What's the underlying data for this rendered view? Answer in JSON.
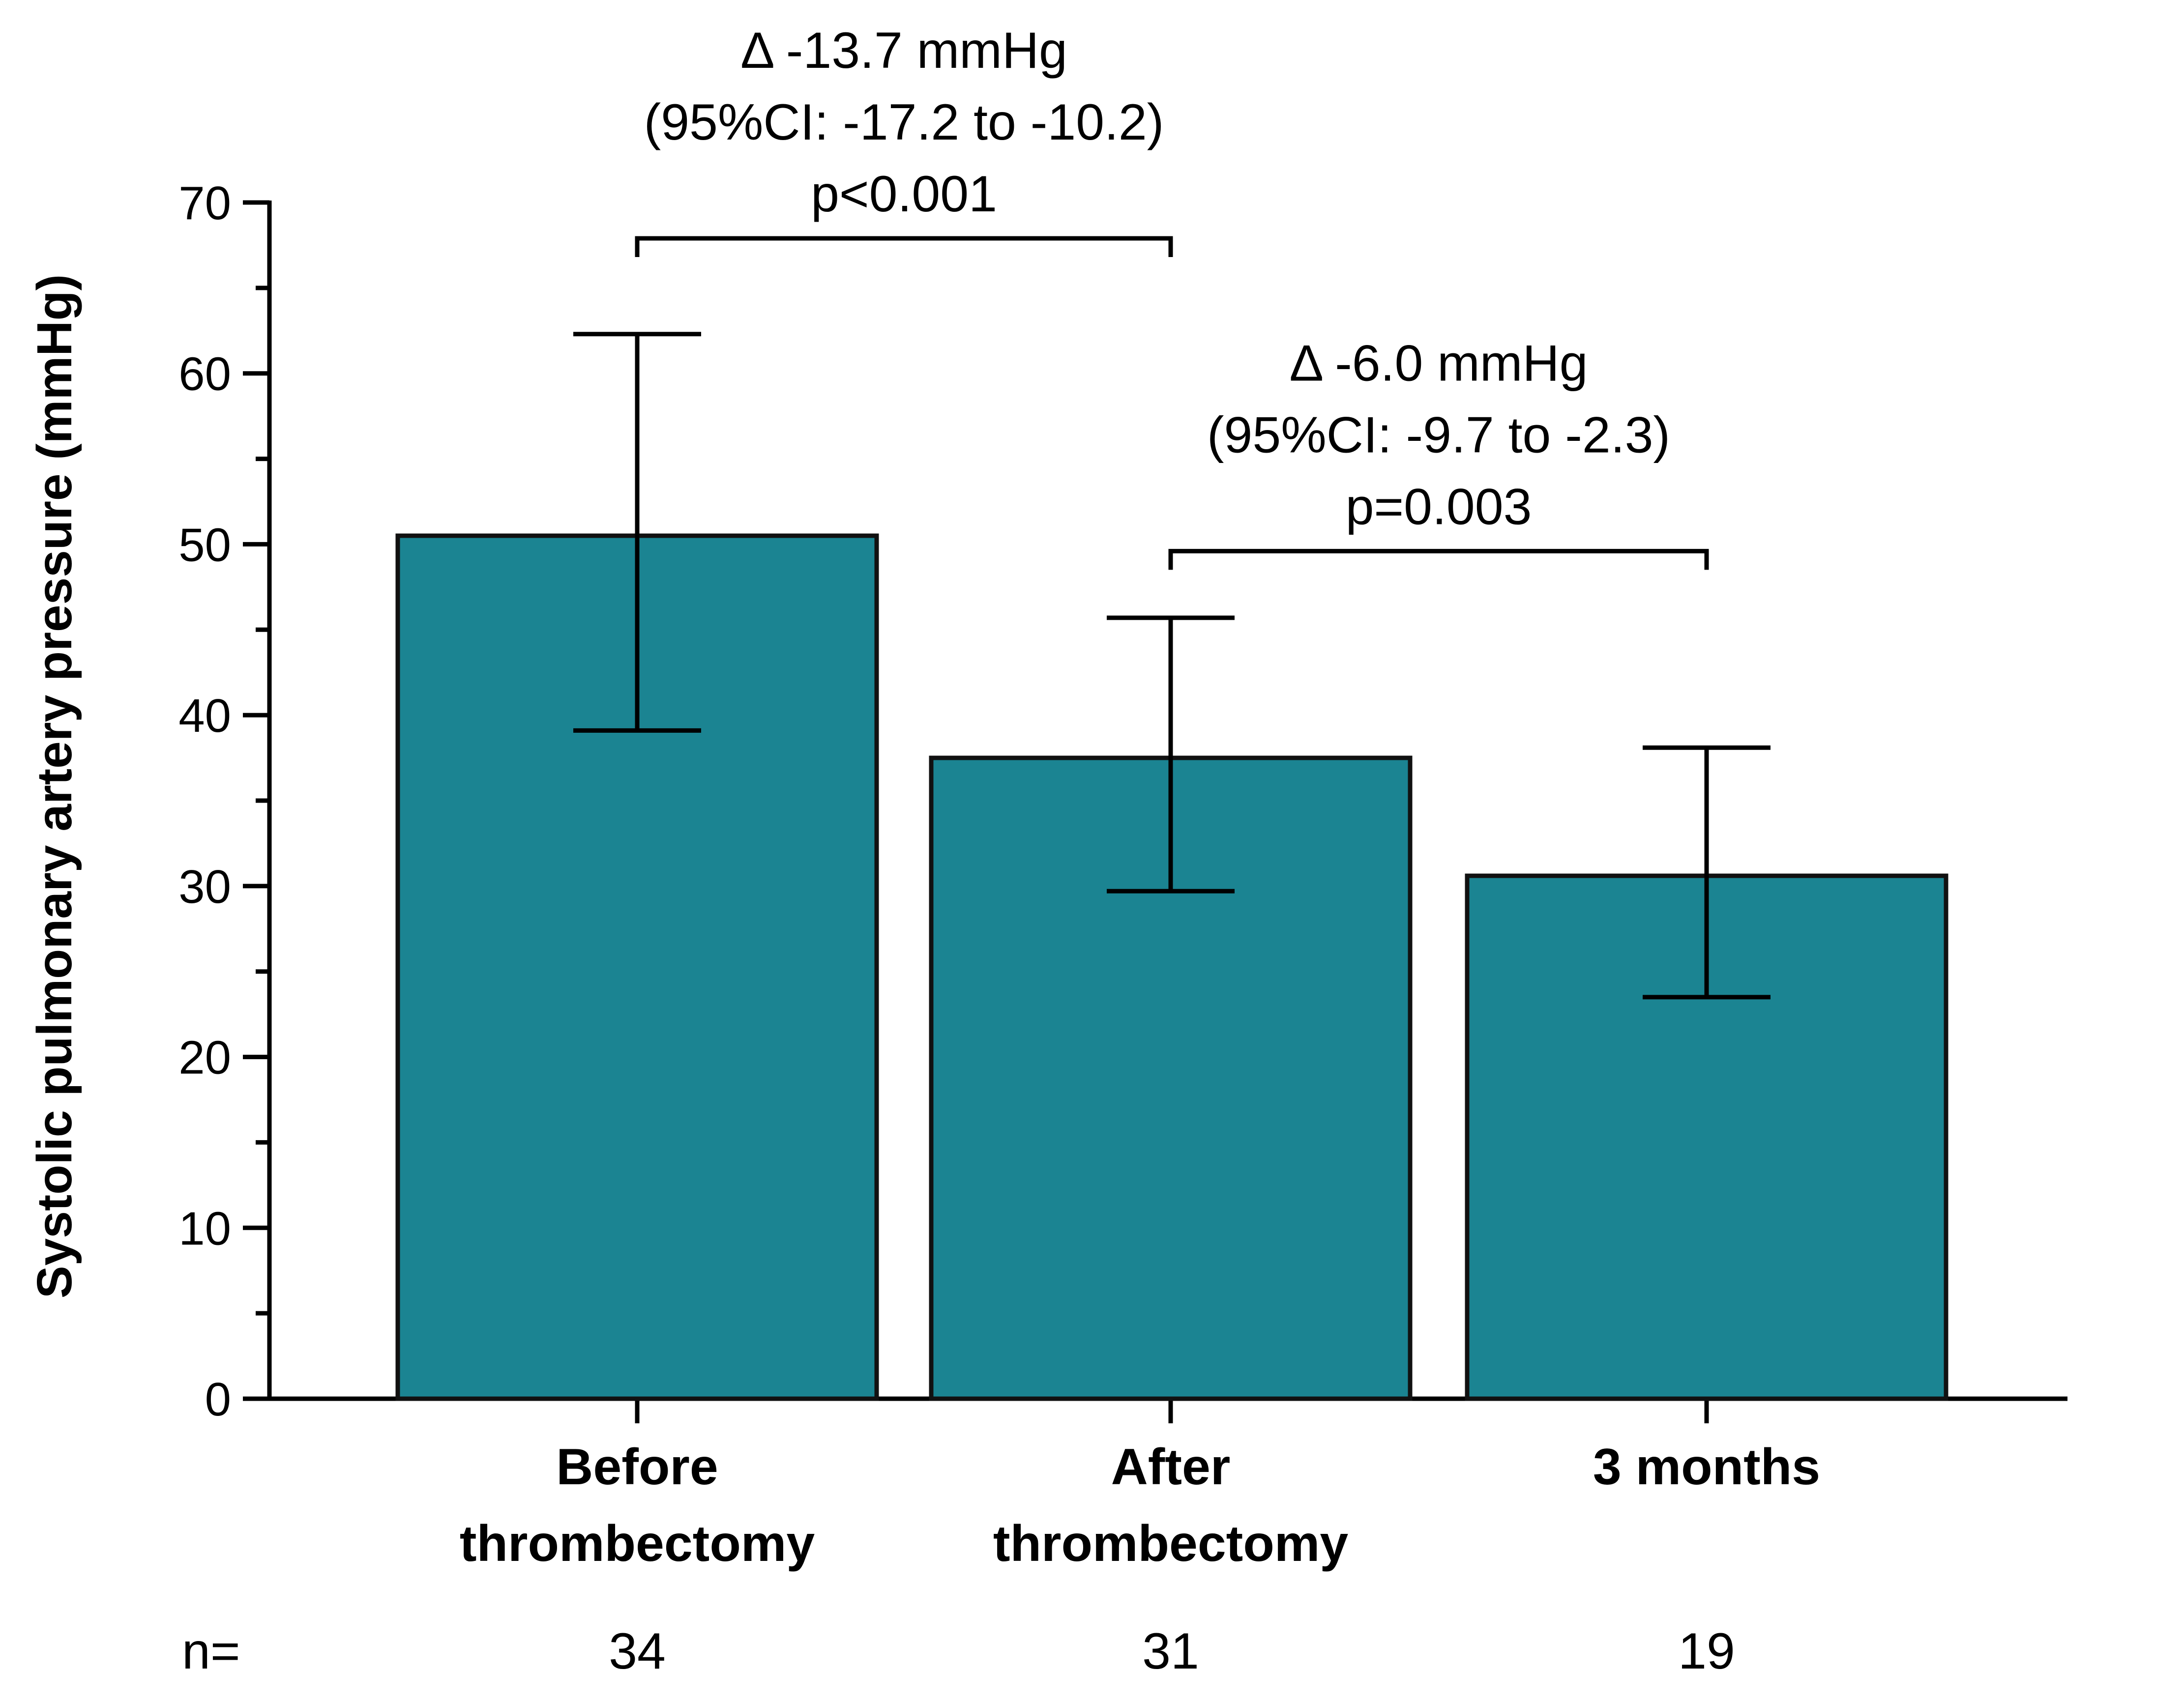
{
  "chart_data": {
    "type": "bar",
    "ylabel": "Systolic pulmonary artery pressure (mmHg)",
    "ylim": [
      0,
      70
    ],
    "yticks": [
      0,
      10,
      20,
      30,
      40,
      50,
      60,
      70
    ],
    "categories": [
      [
        "Before",
        "thrombectomy"
      ],
      [
        "After",
        "thrombectomy"
      ],
      [
        "3 months"
      ]
    ],
    "values": [
      50.5,
      37.5,
      30.6
    ],
    "error_low": [
      39.1,
      29.7,
      23.5
    ],
    "error_high": [
      62.3,
      45.7,
      38.1
    ],
    "bar_color": "#1b8492",
    "n_label": "n=",
    "n_values": [
      "34",
      "31",
      "19"
    ],
    "annotations": [
      {
        "from": 0,
        "to": 1,
        "bracket_y": 67.9,
        "lines": [
          "Δ -13.7 mmHg",
          "(95%CI: -17.2 to -10.2)",
          "p<0.001"
        ]
      },
      {
        "from": 1,
        "to": 2,
        "bracket_y": 49.6,
        "lines": [
          "Δ -6.0 mmHg",
          "(95%CI: -9.7 to -2.3)",
          "p=0.003"
        ]
      }
    ]
  }
}
